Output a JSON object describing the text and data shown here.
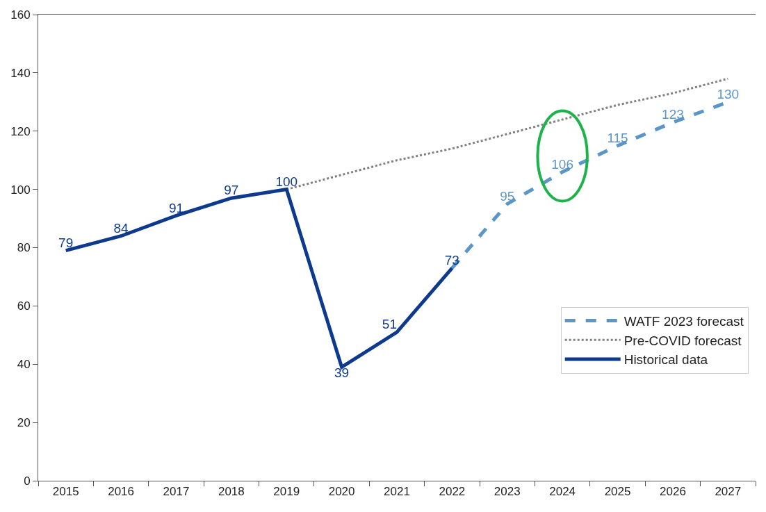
{
  "chart_data": {
    "type": "line",
    "categories": [
      "2015",
      "2016",
      "2017",
      "2018",
      "2019",
      "2020",
      "2021",
      "2022",
      "2023",
      "2024",
      "2025",
      "2026",
      "2027"
    ],
    "series": [
      {
        "name": "WATF 2023 forecast",
        "color": "#5b96c8",
        "line_style": "dashed",
        "values": [
          null,
          null,
          null,
          null,
          null,
          null,
          null,
          73,
          95,
          106,
          115,
          123,
          130
        ],
        "value_labels": [
          null,
          null,
          null,
          null,
          null,
          null,
          null,
          null,
          "95",
          "106",
          "115",
          "123",
          "130"
        ]
      },
      {
        "name": "Pre-COVID forecast",
        "color": "#808080",
        "line_style": "dotted",
        "values": [
          null,
          null,
          null,
          null,
          100,
          105,
          110,
          114,
          119,
          124,
          129,
          133,
          138
        ]
      },
      {
        "name": "Historical data",
        "color": "#0d3a8c",
        "line_style": "solid",
        "values": [
          79,
          84,
          91,
          97,
          100,
          39,
          51,
          73,
          null,
          null,
          null,
          null,
          null
        ],
        "value_labels": [
          "79",
          "84",
          "91",
          "97",
          "100",
          "39",
          "51",
          "73",
          null,
          null,
          null,
          null,
          null
        ]
      }
    ],
    "ylim": [
      0,
      160
    ],
    "yticks": [
      0,
      20,
      40,
      60,
      80,
      100,
      120,
      140,
      160
    ],
    "legend": "bottom right",
    "marker": "none"
  }
}
